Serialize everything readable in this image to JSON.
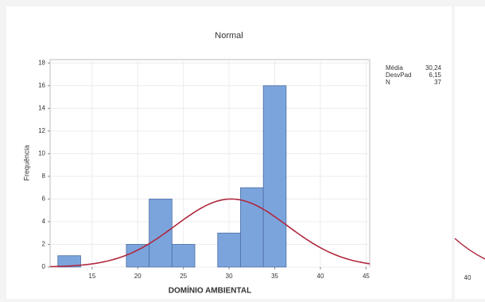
{
  "chart_data": {
    "type": "histogram",
    "title": "Normal",
    "xlabel": "DOMÍNIO AMBIENTAL",
    "ylabel": "Frequência",
    "bins": [
      11.25,
      13.75,
      16.25,
      18.75,
      21.25,
      23.75,
      26.25,
      28.75,
      31.25,
      33.75,
      36.25
    ],
    "values": [
      1,
      0,
      0,
      2,
      6,
      2,
      0,
      3,
      7,
      16
    ],
    "color": "#7ba4dc",
    "curve_color": "#b0283e",
    "curve": {
      "mean": 30.24,
      "sd": 6.15,
      "n": 37
    },
    "xlim": [
      10.4,
      45.4
    ],
    "xticks": [
      15,
      20,
      25,
      30,
      35,
      40,
      45
    ],
    "ylim": [
      0,
      18.3
    ],
    "yticks": [
      0,
      2,
      4,
      6,
      8,
      10,
      12,
      14,
      16,
      18
    ],
    "grid": true,
    "stats": [
      {
        "label": "Média",
        "value": "30,24"
      },
      {
        "label": "DesvPad",
        "value": "6,15"
      },
      {
        "label": "N",
        "value": "37"
      }
    ],
    "side_tick": "40"
  }
}
